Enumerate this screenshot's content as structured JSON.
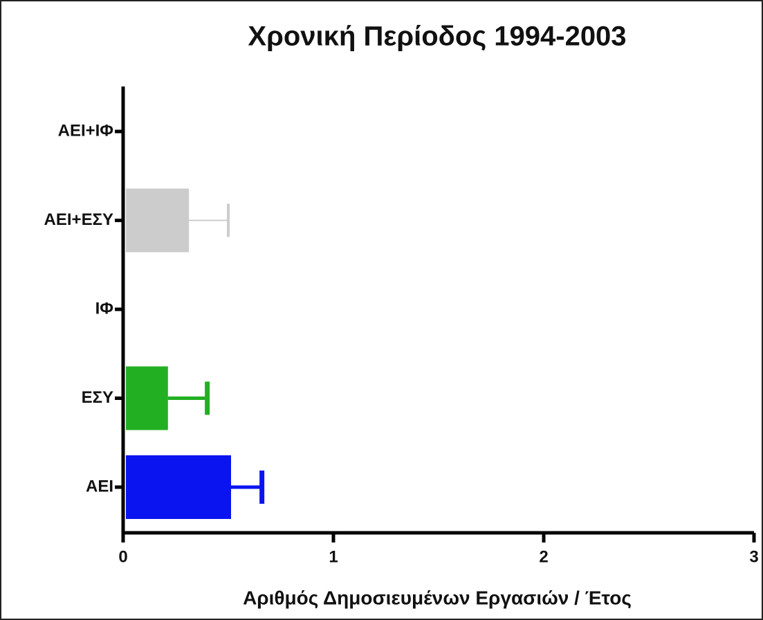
{
  "chart_data": {
    "type": "hbar",
    "title": "Χρονική Περίοδος 1994-2003",
    "x_label": "Αριθμός Δημοσιευμένων Εργασιών /  Έτος",
    "categories": [
      "ΑΕΙ+ΙΦ",
      "ΑΕΙ+ΕΣΥ",
      "ΙΦ",
      "ΕΣΥ",
      "ΑΕΙ"
    ],
    "values": [
      0,
      0.3,
      0,
      0.2,
      0.5
    ],
    "errors": [
      0,
      0.2,
      0,
      0.2,
      0.16
    ],
    "colors": [
      null,
      "#cccccc",
      null,
      "#22b022",
      "#0a14f0"
    ],
    "xlim": [
      0,
      3
    ],
    "xticks": [
      0,
      1,
      2,
      3
    ]
  }
}
